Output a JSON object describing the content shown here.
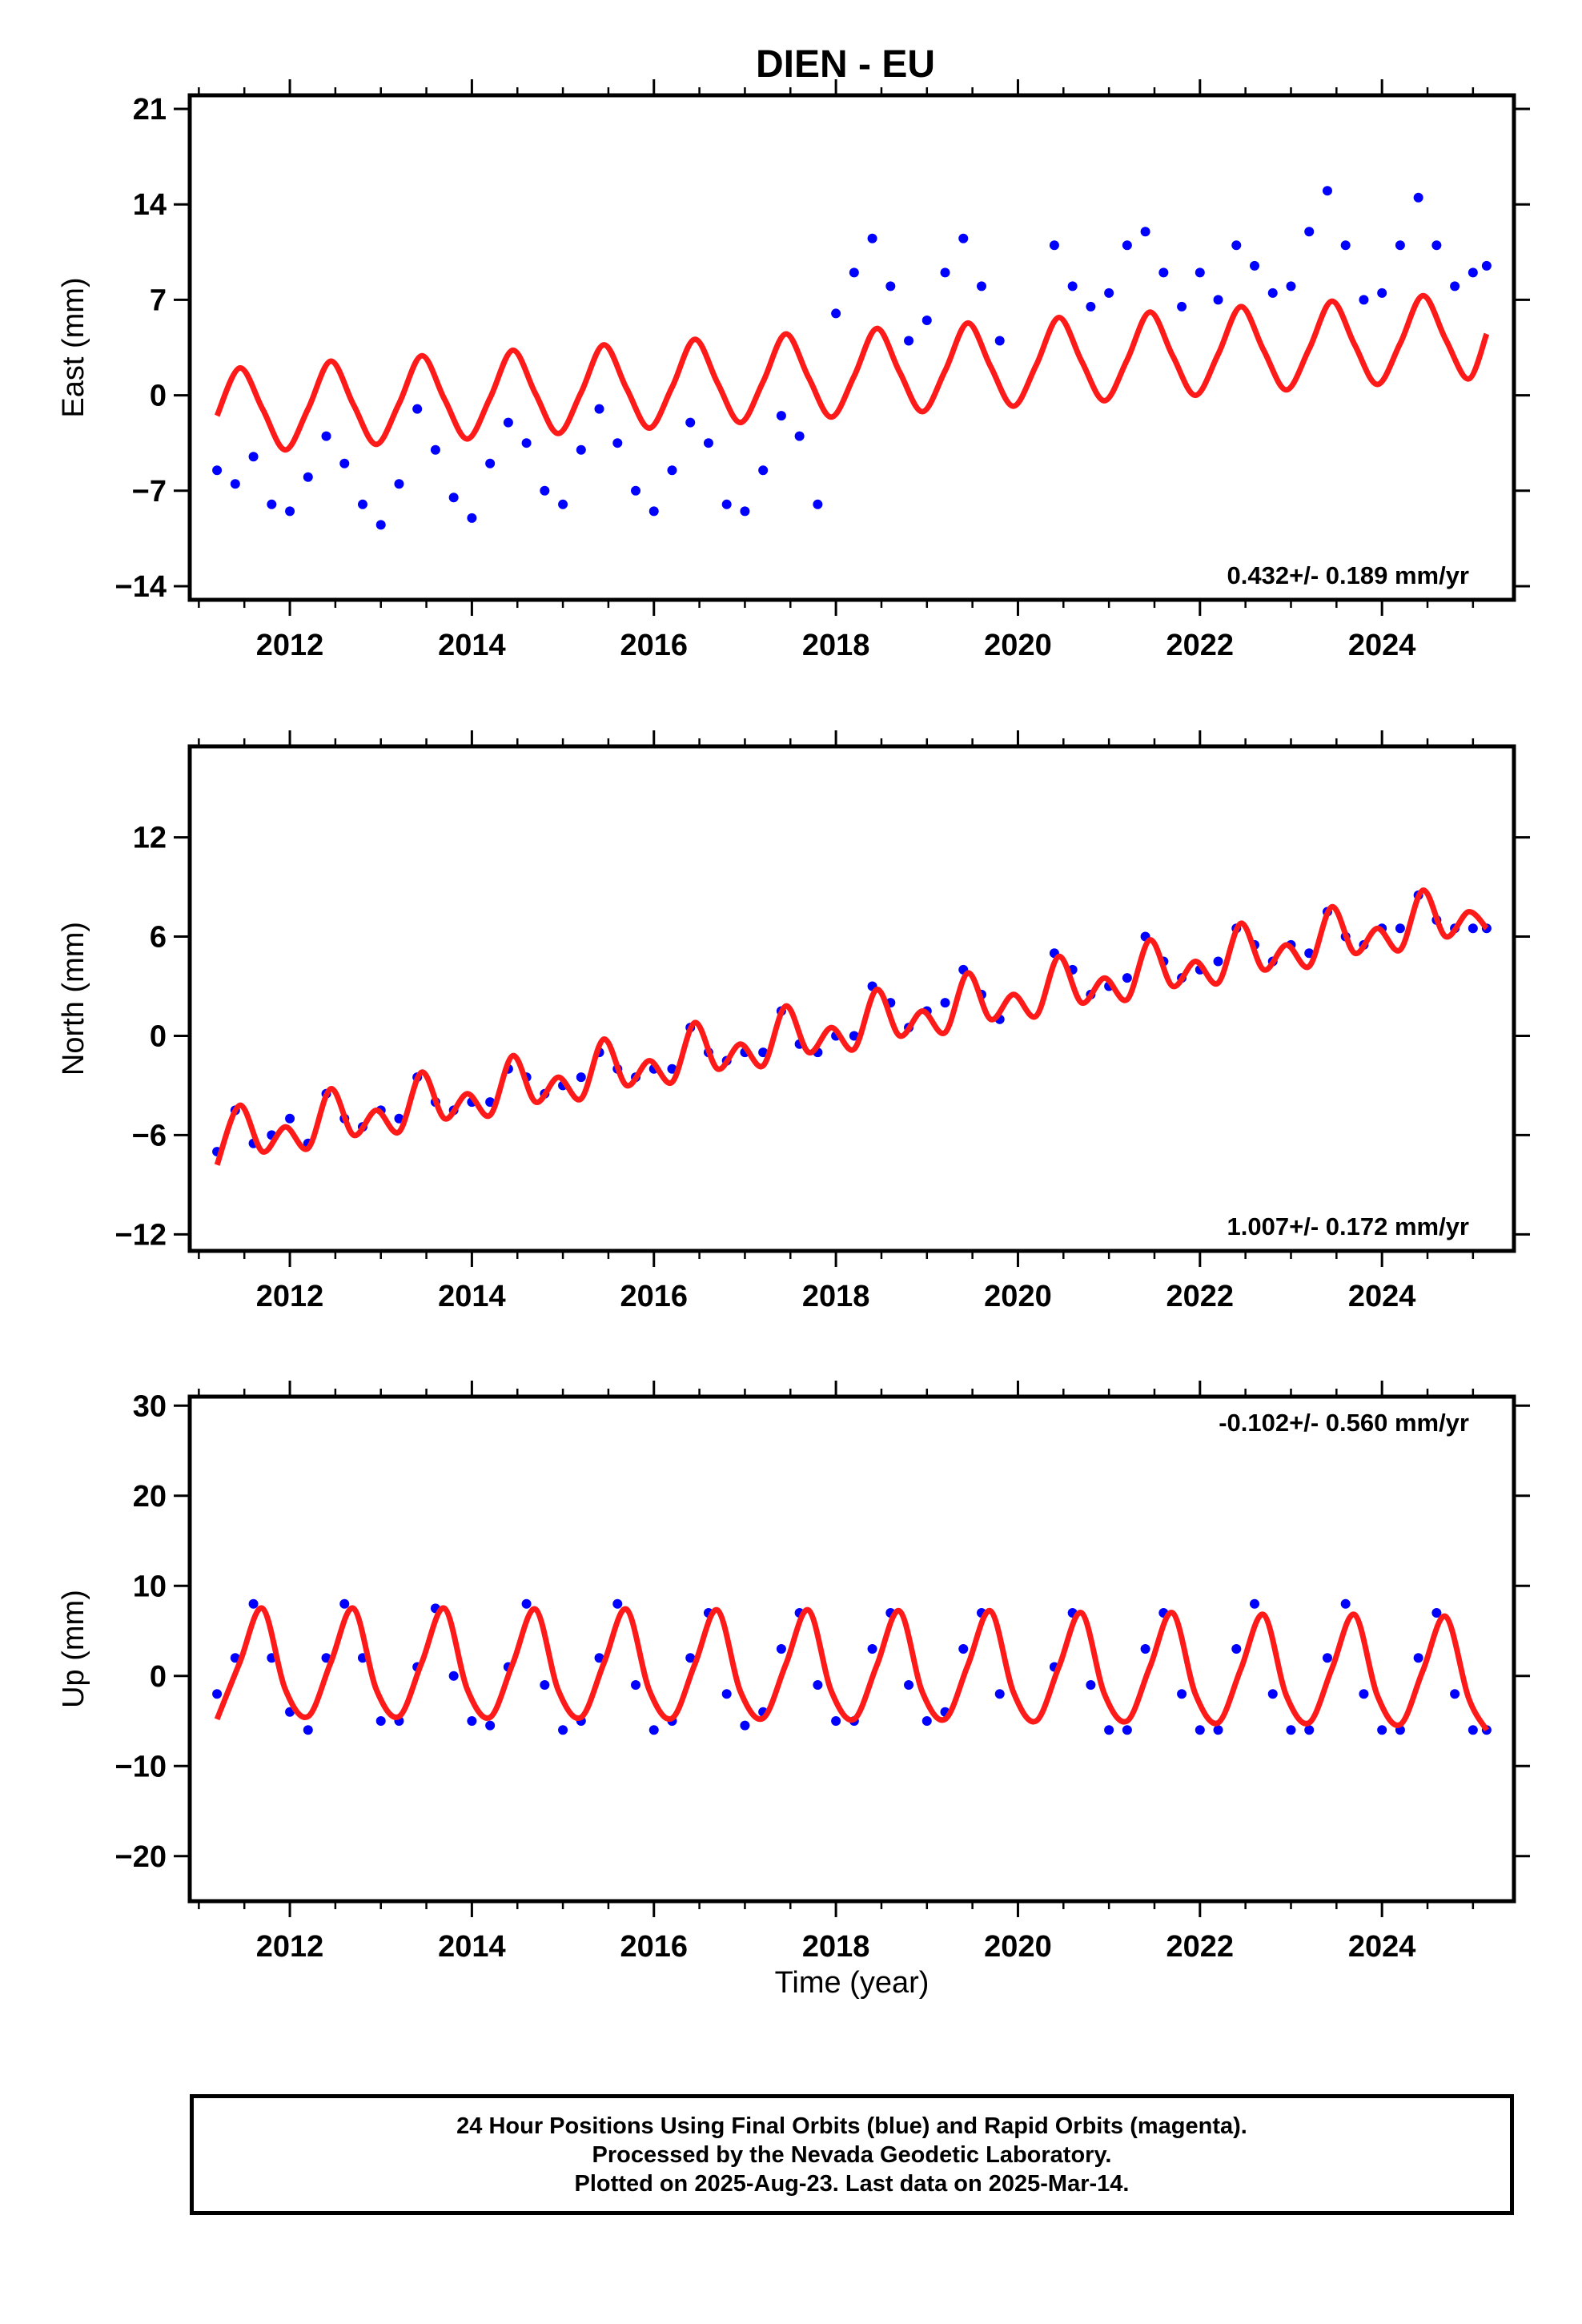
{
  "title": "DIEN - EU",
  "xlabel": "Time (year)",
  "colors": {
    "data": "#0000ff",
    "model": "#ff1a1a",
    "axes": "#000000"
  },
  "footer": {
    "line1": "24 Hour Positions Using Final Orbits (blue) and Rapid Orbits (magenta).",
    "line2": "Processed by the Nevada Geodetic Laboratory.",
    "line3": "Plotted on 2025-Aug-23. Last data on 2025-Mar-14."
  },
  "chart_data": [
    {
      "type": "scatter",
      "component": "east",
      "ylabel": "East (mm)",
      "rate_label": "0.432+/- 0.189 mm/yr",
      "xlim": [
        2010.9,
        2025.45
      ],
      "ylim": [
        -15,
        22
      ],
      "xticks": [
        2012,
        2014,
        2016,
        2018,
        2020,
        2022,
        2024
      ],
      "yticks": [
        -14,
        -7,
        0,
        7,
        14,
        21
      ],
      "series": [
        {
          "role": "daily positions",
          "color": "#0000ff",
          "x": [
            2011.2,
            2011.4,
            2011.6,
            2011.8,
            2012.0,
            2012.2,
            2012.4,
            2012.6,
            2012.8,
            2013.0,
            2013.2,
            2013.4,
            2013.6,
            2013.8,
            2014.0,
            2014.2,
            2014.4,
            2014.6,
            2014.8,
            2015.0,
            2015.2,
            2015.4,
            2015.6,
            2015.8,
            2016.0,
            2016.2,
            2016.4,
            2016.6,
            2016.8,
            2017.0,
            2017.2,
            2017.4,
            2017.6,
            2017.8,
            2018.0,
            2018.2,
            2018.4,
            2018.6,
            2018.8,
            2019.0,
            2019.2,
            2019.4,
            2019.6,
            2019.8,
            2020.4,
            2020.6,
            2020.8,
            2021.0,
            2021.2,
            2021.4,
            2021.6,
            2021.8,
            2022.0,
            2022.2,
            2022.4,
            2022.6,
            2022.8,
            2023.0,
            2023.2,
            2023.4,
            2023.6,
            2023.8,
            2024.0,
            2024.2,
            2024.4,
            2024.6,
            2024.8,
            2025.0,
            2025.15
          ],
          "y": [
            -5.5,
            -6.5,
            -4.5,
            -8.0,
            -8.5,
            -6.0,
            -3.0,
            -5.0,
            -8.0,
            -9.5,
            -6.5,
            -1.0,
            -4.0,
            -7.5,
            -9.0,
            -5.0,
            -2.0,
            -3.5,
            -7.0,
            -8.0,
            -4.0,
            -1.0,
            -3.5,
            -7.0,
            -8.5,
            -5.5,
            -2.0,
            -3.5,
            -8.0,
            -8.5,
            -5.5,
            -1.5,
            -3.0,
            -8.0,
            6.0,
            9.0,
            11.5,
            8.0,
            4.0,
            5.5,
            9.0,
            11.5,
            8.0,
            4.0,
            11.0,
            8.0,
            6.5,
            7.5,
            11.0,
            12.0,
            9.0,
            6.5,
            9.0,
            7.0,
            11.0,
            9.5,
            7.5,
            8.0,
            12.0,
            15.0,
            11.0,
            7.0,
            7.5,
            11.0,
            14.5,
            11.0,
            8.0,
            9.0,
            9.5
          ]
        },
        {
          "role": "model fit",
          "color": "#ff1a1a",
          "x": [
            2011.2,
            2011.45,
            2011.7,
            2011.95,
            2012.2,
            2012.45,
            2012.7,
            2012.95,
            2013.2,
            2013.45,
            2013.7,
            2013.95,
            2014.2,
            2014.45,
            2014.7,
            2014.95,
            2015.2,
            2015.45,
            2015.7,
            2015.95,
            2016.2,
            2016.45,
            2016.7,
            2016.95,
            2017.2,
            2017.45,
            2017.7,
            2017.95,
            2018.2,
            2018.45,
            2018.7,
            2018.95,
            2019.2,
            2019.45,
            2019.7,
            2019.95,
            2020.2,
            2020.45,
            2020.7,
            2020.95,
            2021.2,
            2021.45,
            2021.7,
            2021.95,
            2022.2,
            2022.45,
            2022.7,
            2022.95,
            2023.2,
            2023.45,
            2023.7,
            2023.95,
            2024.2,
            2024.45,
            2024.7,
            2024.95,
            2025.15
          ],
          "y": [
            -1.5,
            2.0,
            -1.0,
            -4.0,
            -1.0,
            2.5,
            -0.7,
            -3.6,
            -0.6,
            2.9,
            -0.3,
            -3.2,
            -0.2,
            3.3,
            0.1,
            -2.8,
            0.2,
            3.7,
            0.5,
            -2.4,
            0.6,
            4.1,
            0.9,
            -2.0,
            1.0,
            4.5,
            1.3,
            -1.6,
            1.4,
            4.9,
            1.7,
            -1.2,
            1.8,
            5.3,
            2.1,
            -0.8,
            2.2,
            5.7,
            2.5,
            -0.4,
            2.6,
            6.1,
            2.9,
            0.0,
            3.0,
            6.5,
            3.3,
            0.4,
            3.4,
            6.9,
            3.7,
            0.8,
            3.8,
            7.3,
            4.1,
            1.2,
            4.5
          ]
        }
      ]
    },
    {
      "type": "scatter",
      "component": "north",
      "ylabel": "North (mm)",
      "rate_label": "1.007+/- 0.172 mm/yr",
      "xlim": [
        2010.9,
        2025.45
      ],
      "ylim": [
        -13,
        17.5
      ],
      "xticks": [
        2012,
        2014,
        2016,
        2018,
        2020,
        2022,
        2024
      ],
      "yticks": [
        -12,
        -6,
        0,
        6,
        12
      ],
      "series": [
        {
          "role": "daily positions",
          "color": "#0000ff",
          "x": [
            2011.2,
            2011.4,
            2011.6,
            2011.8,
            2012.0,
            2012.2,
            2012.4,
            2012.6,
            2012.8,
            2013.0,
            2013.2,
            2013.4,
            2013.6,
            2013.8,
            2014.0,
            2014.2,
            2014.4,
            2014.6,
            2014.8,
            2015.0,
            2015.2,
            2015.4,
            2015.6,
            2015.8,
            2016.0,
            2016.2,
            2016.4,
            2016.6,
            2016.8,
            2017.0,
            2017.2,
            2017.4,
            2017.6,
            2017.8,
            2018.0,
            2018.2,
            2018.4,
            2018.6,
            2018.8,
            2019.0,
            2019.2,
            2019.4,
            2019.6,
            2019.8,
            2020.4,
            2020.6,
            2020.8,
            2021.0,
            2021.2,
            2021.4,
            2021.6,
            2021.8,
            2022.0,
            2022.2,
            2022.4,
            2022.6,
            2022.8,
            2023.0,
            2023.2,
            2023.4,
            2023.6,
            2023.8,
            2024.0,
            2024.2,
            2024.4,
            2024.6,
            2024.8,
            2025.0,
            2025.15
          ],
          "y": [
            -7.0,
            -4.5,
            -6.5,
            -6.0,
            -5.0,
            -6.5,
            -3.5,
            -5.0,
            -5.5,
            -4.5,
            -5.0,
            -2.5,
            -4.0,
            -4.5,
            -4.0,
            -4.0,
            -2.0,
            -2.5,
            -3.5,
            -3.0,
            -2.5,
            -1.0,
            -2.0,
            -2.5,
            -2.0,
            -2.0,
            0.5,
            -1.0,
            -1.5,
            -1.0,
            -1.0,
            1.5,
            -0.5,
            -1.0,
            0.0,
            0.0,
            3.0,
            2.0,
            0.5,
            1.5,
            2.0,
            4.0,
            2.5,
            1.0,
            5.0,
            4.0,
            2.5,
            3.0,
            3.5,
            6.0,
            4.5,
            3.5,
            4.0,
            4.5,
            6.5,
            5.5,
            4.5,
            5.5,
            5.0,
            7.5,
            6.0,
            5.5,
            6.5,
            6.5,
            8.5,
            7.0,
            6.5,
            6.5,
            6.5
          ]
        },
        {
          "role": "model fit",
          "color": "#ff1a1a",
          "x": [
            2011.2,
            2011.45,
            2011.7,
            2011.95,
            2012.2,
            2012.45,
            2012.7,
            2012.95,
            2013.2,
            2013.45,
            2013.7,
            2013.95,
            2014.2,
            2014.45,
            2014.7,
            2014.95,
            2015.2,
            2015.45,
            2015.7,
            2015.95,
            2016.2,
            2016.45,
            2016.7,
            2016.95,
            2017.2,
            2017.45,
            2017.7,
            2017.95,
            2018.2,
            2018.45,
            2018.7,
            2018.95,
            2019.2,
            2019.45,
            2019.7,
            2019.95,
            2020.2,
            2020.45,
            2020.7,
            2020.95,
            2021.2,
            2021.45,
            2021.7,
            2021.95,
            2022.2,
            2022.45,
            2022.7,
            2022.95,
            2023.2,
            2023.45,
            2023.7,
            2023.95,
            2024.2,
            2024.45,
            2024.7,
            2024.95,
            2025.15
          ],
          "y": [
            -7.8,
            -4.2,
            -7.0,
            -5.5,
            -6.8,
            -3.2,
            -6.0,
            -4.5,
            -5.8,
            -2.2,
            -5.0,
            -3.5,
            -4.8,
            -1.2,
            -4.0,
            -2.5,
            -3.8,
            -0.2,
            -3.0,
            -1.5,
            -2.8,
            0.8,
            -2.0,
            -0.5,
            -1.8,
            1.8,
            -1.0,
            0.5,
            -0.8,
            2.8,
            0.0,
            1.5,
            0.2,
            3.8,
            1.0,
            2.5,
            1.2,
            4.8,
            2.0,
            3.5,
            2.2,
            5.8,
            3.0,
            4.5,
            3.2,
            6.8,
            4.0,
            5.5,
            4.2,
            7.8,
            5.0,
            6.5,
            5.2,
            8.8,
            6.0,
            7.5,
            6.5
          ]
        }
      ]
    },
    {
      "type": "scatter",
      "component": "up",
      "ylabel": "Up (mm)",
      "rate_label": "-0.102+/- 0.560 mm/yr",
      "xlim": [
        2010.9,
        2025.45
      ],
      "ylim": [
        -25,
        31
      ],
      "xticks": [
        2012,
        2014,
        2016,
        2018,
        2020,
        2022,
        2024
      ],
      "yticks": [
        -20,
        -10,
        0,
        10,
        20,
        30
      ],
      "series": [
        {
          "role": "daily positions",
          "color": "#0000ff",
          "x": [
            2011.2,
            2011.4,
            2011.6,
            2011.8,
            2012.0,
            2012.2,
            2012.4,
            2012.6,
            2012.8,
            2013.0,
            2013.2,
            2013.4,
            2013.6,
            2013.8,
            2014.0,
            2014.2,
            2014.4,
            2014.6,
            2014.8,
            2015.0,
            2015.2,
            2015.4,
            2015.6,
            2015.8,
            2016.0,
            2016.2,
            2016.4,
            2016.6,
            2016.8,
            2017.0,
            2017.2,
            2017.4,
            2017.6,
            2017.8,
            2018.0,
            2018.2,
            2018.4,
            2018.6,
            2018.8,
            2019.0,
            2019.2,
            2019.4,
            2019.6,
            2019.8,
            2020.4,
            2020.6,
            2020.8,
            2021.0,
            2021.2,
            2021.4,
            2021.6,
            2021.8,
            2022.0,
            2022.2,
            2022.4,
            2022.6,
            2022.8,
            2023.0,
            2023.2,
            2023.4,
            2023.6,
            2023.8,
            2024.0,
            2024.2,
            2024.4,
            2024.6,
            2024.8,
            2025.0,
            2025.15
          ],
          "y": [
            -2.0,
            2.0,
            8.0,
            2.0,
            -4.0,
            -6.0,
            2.0,
            8.0,
            2.0,
            -5.0,
            -5.0,
            1.0,
            7.5,
            0.0,
            -5.0,
            -5.5,
            1.0,
            8.0,
            -1.0,
            -6.0,
            -5.0,
            2.0,
            8.0,
            -1.0,
            -6.0,
            -5.0,
            2.0,
            7.0,
            -2.0,
            -5.5,
            -4.0,
            3.0,
            7.0,
            -1.0,
            -5.0,
            -5.0,
            3.0,
            7.0,
            -1.0,
            -5.0,
            -4.0,
            3.0,
            7.0,
            -2.0,
            1.0,
            7.0,
            -1.0,
            -6.0,
            -6.0,
            3.0,
            7.0,
            -2.0,
            -6.0,
            -6.0,
            3.0,
            8.0,
            -2.0,
            -6.0,
            -6.0,
            2.0,
            8.0,
            -2.0,
            -6.0,
            -6.0,
            2.0,
            7.0,
            -2.0,
            -6.0,
            -6.0
          ]
        },
        {
          "role": "model fit",
          "color": "#ff1a1a",
          "x": [
            2011.2,
            2011.45,
            2011.7,
            2011.95,
            2012.2,
            2012.45,
            2012.7,
            2012.95,
            2013.2,
            2013.45,
            2013.7,
            2013.95,
            2014.2,
            2014.45,
            2014.7,
            2014.95,
            2015.2,
            2015.45,
            2015.7,
            2015.95,
            2016.2,
            2016.45,
            2016.7,
            2016.95,
            2017.2,
            2017.45,
            2017.7,
            2017.95,
            2018.2,
            2018.45,
            2018.7,
            2018.95,
            2019.2,
            2019.45,
            2019.7,
            2019.95,
            2020.2,
            2020.45,
            2020.7,
            2020.95,
            2021.2,
            2021.45,
            2021.7,
            2021.95,
            2022.2,
            2022.45,
            2022.7,
            2022.95,
            2023.2,
            2023.45,
            2023.7,
            2023.95,
            2024.2,
            2024.45,
            2024.7,
            2024.95,
            2025.15
          ],
          "y": [
            -4.8,
            1.5,
            7.5,
            -1.5,
            -4.5,
            1.5,
            7.5,
            -1.5,
            -4.5,
            1.5,
            7.5,
            -1.5,
            -4.6,
            1.4,
            7.4,
            -1.6,
            -4.6,
            1.4,
            7.4,
            -1.6,
            -4.7,
            1.3,
            7.3,
            -1.7,
            -4.7,
            1.3,
            7.3,
            -1.7,
            -4.8,
            1.2,
            7.2,
            -1.8,
            -4.8,
            1.2,
            7.2,
            -1.8,
            -5.0,
            1.0,
            7.0,
            -2.0,
            -5.0,
            1.0,
            7.0,
            -2.0,
            -5.2,
            0.8,
            6.8,
            -2.2,
            -5.2,
            0.8,
            6.8,
            -2.2,
            -5.4,
            0.6,
            6.6,
            -2.4,
            -6.0
          ]
        }
      ]
    }
  ]
}
